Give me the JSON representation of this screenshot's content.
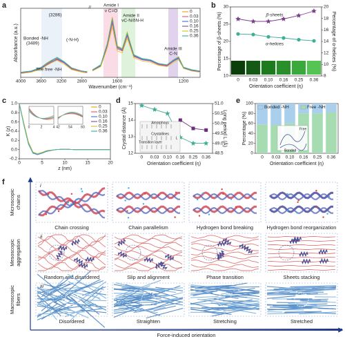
{
  "chart_data": [
    {
      "type": "line",
      "panel_label": "a",
      "xlabel": "Wavenumber (cm⁻¹)",
      "ylabel": "Absorbance (a.u.)",
      "x": [
        4000,
        3800,
        3600,
        3489,
        3400,
        3286,
        3150,
        3000,
        2800,
        2700,
        1750,
        1700,
        1660,
        1630,
        1600,
        1570,
        1540,
        1500,
        1450,
        1400,
        1350,
        1300,
        1260,
        1230,
        1200,
        1150,
        1100
      ],
      "xlim": [
        4000,
        1100
      ],
      "x_break": [
        2700,
        1750
      ],
      "xticks": [
        4000,
        3600,
        3200,
        2800,
        1600,
        1200
      ],
      "ylim": [
        0,
        1.1
      ],
      "legend": "upper right",
      "annotations": [
        "(3286)",
        "Bonded -NH",
        "(3489)",
        "(-N-H)",
        "The free -NH",
        "Amide I",
        "ν C=O",
        "Amide II",
        "νC-N/δN-H",
        "Amide III",
        "C-N"
      ],
      "series": [
        {
          "name": "0",
          "color": "#f5a623",
          "values": [
            0.08,
            0.1,
            0.16,
            0.23,
            0.27,
            0.31,
            0.25,
            0.15,
            0.1,
            0.09,
            0.12,
            0.2,
            0.55,
            0.96,
            0.5,
            0.46,
            0.72,
            0.36,
            0.3,
            0.28,
            0.22,
            0.2,
            0.28,
            0.33,
            0.16,
            0.12,
            0.1
          ]
        },
        {
          "name": "0.03",
          "color": "#e8607a",
          "values": [
            0.07,
            0.09,
            0.15,
            0.21,
            0.25,
            0.28,
            0.23,
            0.13,
            0.09,
            0.08,
            0.11,
            0.18,
            0.5,
            0.86,
            0.45,
            0.42,
            0.66,
            0.33,
            0.28,
            0.26,
            0.2,
            0.18,
            0.26,
            0.3,
            0.15,
            0.11,
            0.09
          ]
        },
        {
          "name": "0.10",
          "color": "#4a7fd4",
          "values": [
            0.08,
            0.1,
            0.15,
            0.22,
            0.26,
            0.3,
            0.24,
            0.14,
            0.1,
            0.09,
            0.12,
            0.19,
            0.53,
            0.91,
            0.48,
            0.44,
            0.69,
            0.35,
            0.29,
            0.27,
            0.21,
            0.19,
            0.27,
            0.31,
            0.16,
            0.12,
            0.1
          ]
        },
        {
          "name": "0.16",
          "color": "#8b5aa8",
          "values": [
            0.07,
            0.09,
            0.14,
            0.2,
            0.24,
            0.29,
            0.23,
            0.14,
            0.1,
            0.08,
            0.11,
            0.18,
            0.52,
            0.89,
            0.47,
            0.43,
            0.67,
            0.34,
            0.28,
            0.26,
            0.21,
            0.19,
            0.26,
            0.3,
            0.15,
            0.11,
            0.09
          ]
        },
        {
          "name": "0.25",
          "color": "#e0c030",
          "values": [
            0.06,
            0.08,
            0.13,
            0.19,
            0.23,
            0.27,
            0.21,
            0.12,
            0.08,
            0.07,
            0.1,
            0.17,
            0.47,
            0.8,
            0.42,
            0.39,
            0.62,
            0.31,
            0.26,
            0.24,
            0.19,
            0.17,
            0.24,
            0.28,
            0.14,
            0.1,
            0.08
          ]
        },
        {
          "name": "0.36",
          "color": "#3fb8a0",
          "values": [
            0.08,
            0.1,
            0.16,
            0.22,
            0.27,
            0.32,
            0.25,
            0.15,
            0.1,
            0.09,
            0.12,
            0.2,
            0.54,
            0.93,
            0.49,
            0.45,
            0.7,
            0.36,
            0.3,
            0.28,
            0.22,
            0.2,
            0.28,
            0.32,
            0.16,
            0.12,
            0.1
          ]
        }
      ]
    },
    {
      "type": "line",
      "panel_label": "b",
      "xlabel": "Orientation coefficient (η)",
      "ylabel": "Percentage of β-sheets (%)",
      "y2label": "Percentage of α-helices (%)",
      "categories": [
        "0",
        "0.03",
        "0.10",
        "0.16",
        "0.25",
        "0.36"
      ],
      "ylim": [
        10,
        30
      ],
      "yticks": [
        10,
        15,
        20,
        25,
        30
      ],
      "y2lim": [
        8,
        20
      ],
      "y2ticks": [
        8,
        10,
        12,
        14,
        16,
        18,
        20
      ],
      "series": [
        {
          "name": "β-sheets",
          "color": "#7b3f8c",
          "marker": "star",
          "values": [
            26.5,
            25.8,
            25.8,
            26.5,
            27.5,
            28.8
          ]
        },
        {
          "name": "α-helices",
          "color": "#3fae96",
          "marker": "circle",
          "axis": "y2",
          "values": [
            15.3,
            15.2,
            14.8,
            14.6,
            14.3,
            14.1
          ]
        }
      ]
    },
    {
      "type": "line",
      "panel_label": "c",
      "xlabel": "z (nm)",
      "ylabel": "K (z)",
      "x": [
        0,
        1,
        2,
        3,
        4,
        5,
        6,
        8,
        10,
        12,
        15,
        20
      ],
      "xlim": [
        0,
        20
      ],
      "xticks": [
        0,
        5,
        10,
        15,
        20
      ],
      "ylim": [
        -0.2,
        1.0
      ],
      "yticks": [
        -0.2,
        {
          "value": 0,
          "label": "0.0"
        },
        0.2,
        0.4,
        0.6,
        0.8,
        {
          "value": 1,
          "label": "1.0"
        }
      ],
      "legend": "upper right",
      "inset_xticks": [
        0,
        2,
        4,
        42,
        54,
        60
      ],
      "series": [
        {
          "name": "0",
          "color": "#f5a623",
          "values": [
            1,
            0.55,
            0.14,
            -0.07,
            -0.1,
            -0.07,
            -0.03,
            0,
            0.01,
            0,
            0,
            0
          ]
        },
        {
          "name": "0.03",
          "color": "#e8607a",
          "values": [
            1,
            0.57,
            0.16,
            -0.06,
            -0.09,
            -0.06,
            -0.03,
            0,
            0.01,
            0,
            0,
            0
          ]
        },
        {
          "name": "0.10",
          "color": "#4a7fd4",
          "values": [
            1,
            0.53,
            0.12,
            -0.08,
            -0.11,
            -0.08,
            -0.04,
            0,
            0.01,
            0,
            0,
            0
          ]
        },
        {
          "name": "0.16",
          "color": "#8b5aa8",
          "values": [
            1,
            0.56,
            0.15,
            -0.06,
            -0.1,
            -0.07,
            -0.03,
            0,
            0.01,
            0,
            0,
            0
          ]
        },
        {
          "name": "0.25",
          "color": "#e0c030",
          "values": [
            1,
            0.58,
            0.17,
            -0.05,
            -0.09,
            -0.06,
            -0.02,
            0,
            0.01,
            0,
            0,
            0
          ]
        },
        {
          "name": "0.36",
          "color": "#3fb8a0",
          "values": [
            1,
            0.54,
            0.13,
            -0.07,
            -0.1,
            -0.07,
            -0.03,
            0,
            0.01,
            0,
            0,
            0
          ]
        }
      ]
    },
    {
      "type": "line",
      "panel_label": "d",
      "xlabel": "Orientation coefficient (η)",
      "ylabel": "Crystal distance (Å)",
      "y2label": "Long period L (Å)",
      "categories": [
        "0",
        "0.03",
        "0.10",
        "0.16",
        "0.25",
        "0.36"
      ],
      "ylim": [
        12,
        15
      ],
      "yticks": [
        12,
        13,
        14,
        15
      ],
      "y2lim": [
        48.5,
        51
      ],
      "y2ticks": [
        48.5,
        {
          "value": 49,
          "label": "49.0"
        },
        49.5,
        {
          "value": 50,
          "label": "50.0"
        },
        50.5,
        {
          "value": 51,
          "label": "51.0"
        }
      ],
      "inset_labels": [
        "Amorphous",
        "Crystallines",
        "Transition layer",
        "L"
      ],
      "series": [
        {
          "color": "#6a2f7a",
          "marker": "square",
          "values": [
            13.2,
            13.0,
            13.4,
            14.0,
            13.5,
            13.4
          ]
        },
        {
          "color": "#3fae96",
          "marker": "star",
          "axis": "y2",
          "values": [
            50.9,
            50.7,
            50.5,
            49.3,
            49.0,
            49.0
          ]
        }
      ]
    },
    {
      "type": "bar",
      "panel_label": "e",
      "ylabel": "Percentage (%)",
      "xlabel": "Orientation coefficient (η)",
      "stacked": true,
      "legend": "upper center",
      "categories": [
        "0",
        "0.03",
        "0.10",
        "0.16",
        "0.25",
        "0.36"
      ],
      "ylim": [
        0,
        100
      ],
      "yticks": [
        0,
        20,
        40,
        60,
        80,
        100
      ],
      "inset_labels": [
        "Free",
        "Bonded"
      ],
      "series": [
        {
          "name": "Bonded -NH",
          "color": "#a9cfec",
          "values": [
            42,
            43,
            40,
            20,
            20,
            18
          ]
        },
        {
          "name": "Free -NH",
          "color": "#a7dcb2",
          "values": [
            58,
            57,
            60,
            80,
            80,
            82
          ]
        }
      ]
    }
  ],
  "panel_f": {
    "panel_label": "f",
    "row_numerals": [
      "i",
      "ii",
      "iii"
    ],
    "row_labels": [
      [
        "Microscopic",
        "chains"
      ],
      [
        "Mesoscopic",
        "aggregation"
      ],
      [
        "Macroscopic",
        "fibers"
      ]
    ],
    "captions": [
      [
        "Chain crossing",
        "Chain parallelism",
        "Hydrogen bond breaking",
        "Hydrogen bond reorganization"
      ],
      [
        "Random and disordered",
        "Slip and alignment",
        "Phase transition",
        "Sheets stacking"
      ],
      [
        "Disordered",
        "Straighten",
        "Stretching",
        "Stretched"
      ]
    ],
    "axis_label": "Force-induced orientation"
  }
}
